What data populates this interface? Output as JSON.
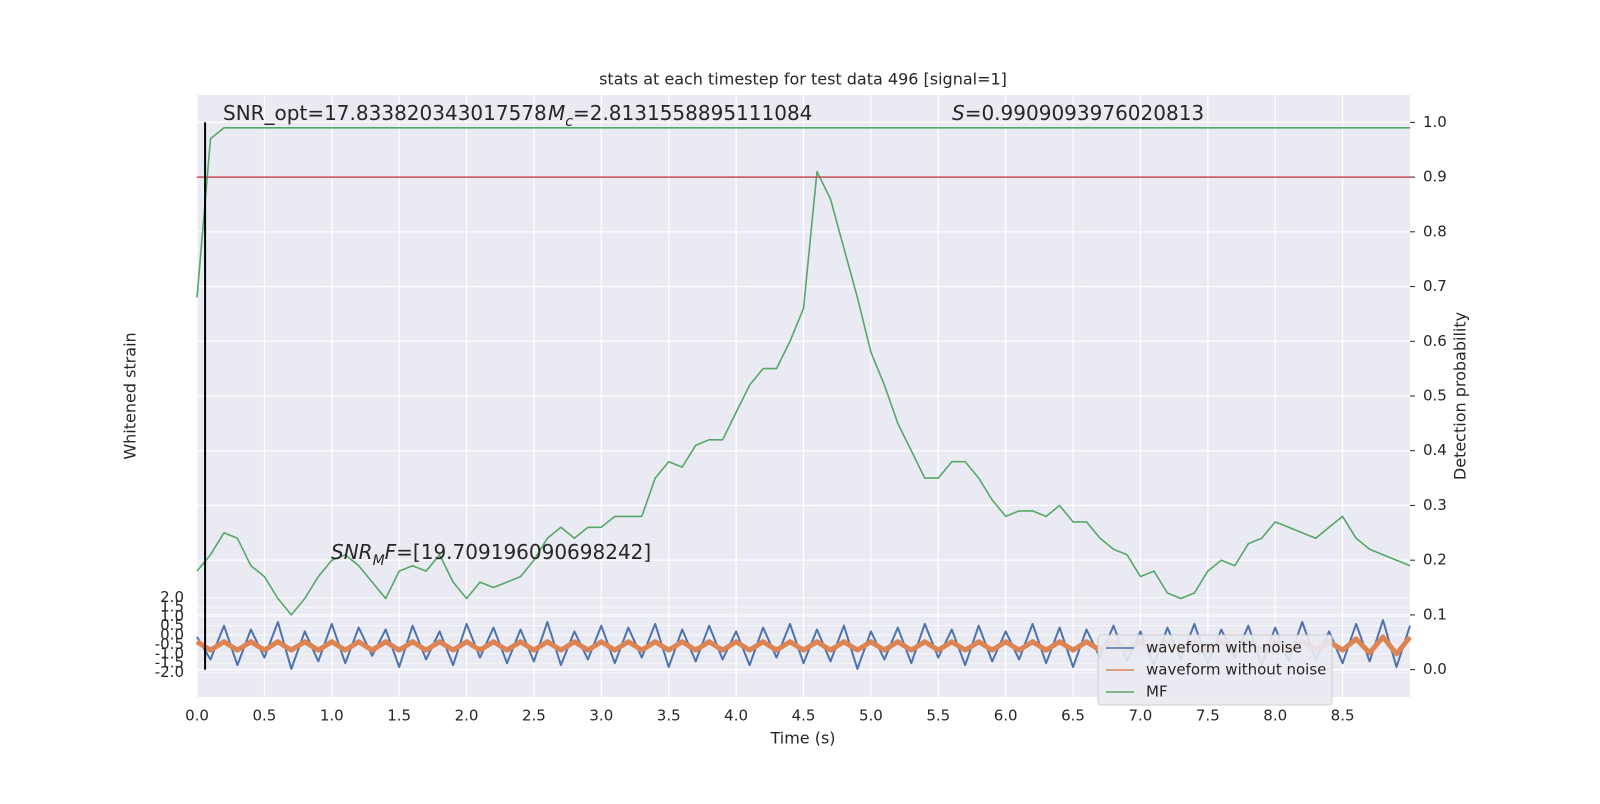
{
  "chart_data": {
    "type": "line",
    "title": "stats at each timestep for test data 496 [signal=1]",
    "xlabel": "Time (s)",
    "ylabel": "Whitened strain",
    "y2label": "Detection probability",
    "background": "#eaeaf2",
    "grid": true,
    "legend": "lower right",
    "xlim": [
      0,
      9
    ],
    "xticks": [
      {
        "value": 0,
        "label": "0.0"
      },
      0.5,
      {
        "value": 1,
        "label": "1.0"
      },
      1.5,
      {
        "value": 2,
        "label": "2.0"
      },
      2.5,
      {
        "value": 3,
        "label": "3.0"
      },
      3.5,
      {
        "value": 4,
        "label": "4.0"
      },
      4.5,
      {
        "value": 5,
        "label": "5.0"
      },
      5.5,
      {
        "value": 6,
        "label": "6.0"
      },
      6.5,
      {
        "value": 7,
        "label": "7.0"
      },
      7.5,
      {
        "value": 8,
        "label": "8.0"
      },
      8.5
    ],
    "ylim": [
      -3.3,
      28.8
    ],
    "yticks": [
      {
        "value": -2,
        "label": "-2.0"
      },
      -1.5,
      {
        "value": -1,
        "label": "-1.0"
      },
      -0.5,
      {
        "value": 0,
        "label": "0.0"
      },
      0.5,
      {
        "value": 1,
        "label": "1.0"
      },
      1.5,
      {
        "value": 2,
        "label": "2.0"
      }
    ],
    "y2lim": [
      -0.05,
      1.05
    ],
    "y2ticks": [
      {
        "value": 0,
        "label": "0.0"
      },
      0.1,
      0.2,
      0.3,
      0.4,
      0.5,
      0.6,
      0.7,
      0.8,
      0.9,
      {
        "value": 1,
        "label": "1.0"
      }
    ],
    "x": [
      0,
      0.1,
      0.2,
      0.3,
      0.4,
      0.5,
      0.6,
      0.7,
      0.8,
      0.9,
      1,
      1.1,
      1.2,
      1.3,
      1.4,
      1.5,
      1.6,
      1.7,
      1.8,
      1.9,
      2,
      2.1,
      2.2,
      2.3,
      2.4,
      2.5,
      2.6,
      2.7,
      2.8,
      2.9,
      3,
      3.1,
      3.2,
      3.3,
      3.4,
      3.5,
      3.6,
      3.7,
      3.8,
      3.9,
      4,
      4.1,
      4.2,
      4.3,
      4.4,
      4.5,
      4.6,
      4.7,
      4.8,
      4.9,
      5,
      5.1,
      5.2,
      5.3,
      5.4,
      5.5,
      5.6,
      5.7,
      5.8,
      5.9,
      6,
      6.1,
      6.2,
      6.3,
      6.4,
      6.5,
      6.6,
      6.7,
      6.8,
      6.9,
      7,
      7.1,
      7.2,
      7.3,
      7.4,
      7.5,
      7.6,
      7.7,
      7.8,
      7.9,
      8,
      8.1,
      8.2,
      8.3,
      8.4,
      8.5,
      8.6,
      8.7,
      8.8,
      8.9,
      9
    ],
    "series": [
      {
        "name": "waveform with noise",
        "color": "#4c72b0",
        "width": 2,
        "values": [
          -0.1,
          -1.3,
          0.5,
          -1.6,
          0.3,
          -1.2,
          0.7,
          -1.8,
          0.2,
          -1.4,
          0.6,
          -1.5,
          0.4,
          -1.1,
          0.3,
          -1.7,
          0.5,
          -1.3,
          0.2,
          -1.6,
          0.6,
          -1.2,
          0.4,
          -1.5,
          0.3,
          -1.4,
          0.7,
          -1.6,
          0.2,
          -1.3,
          0.5,
          -1.5,
          0.4,
          -1.2,
          0.6,
          -1.7,
          0.3,
          -1.4,
          0.5,
          -1.3,
          0.2,
          -1.6,
          0.4,
          -1.2,
          0.6,
          -1.5,
          0.3,
          -1.4,
          0.5,
          -1.8,
          0.2,
          -1.3,
          0.4,
          -1.5,
          0.6,
          -1.2,
          0.3,
          -1.6,
          0.5,
          -1.4,
          0.2,
          -1.3,
          0.6,
          -1.5,
          0.4,
          -1.7,
          0.3,
          -1.2,
          0.5,
          -1.4,
          0.2,
          -1.6,
          0.4,
          -1.3,
          0.6,
          -1.5,
          0.3,
          -1.2,
          0.5,
          -1.6,
          0.4,
          -1.4,
          0.7,
          -1.3,
          0.2,
          -1.5,
          0.6,
          -1.4,
          0.8,
          -1.7,
          0.5
        ]
      },
      {
        "name": "waveform without noise",
        "color": "#dd8452",
        "width": 5,
        "values": [
          -0.35,
          -0.8,
          -0.35,
          -0.8,
          -0.35,
          -0.8,
          -0.35,
          -0.8,
          -0.35,
          -0.8,
          -0.35,
          -0.8,
          -0.35,
          -0.8,
          -0.35,
          -0.8,
          -0.35,
          -0.8,
          -0.35,
          -0.8,
          -0.35,
          -0.8,
          -0.35,
          -0.8,
          -0.35,
          -0.8,
          -0.35,
          -0.8,
          -0.35,
          -0.8,
          -0.35,
          -0.8,
          -0.35,
          -0.8,
          -0.35,
          -0.8,
          -0.35,
          -0.8,
          -0.35,
          -0.8,
          -0.35,
          -0.8,
          -0.35,
          -0.8,
          -0.35,
          -0.8,
          -0.35,
          -0.8,
          -0.35,
          -0.8,
          -0.35,
          -0.8,
          -0.35,
          -0.8,
          -0.35,
          -0.8,
          -0.35,
          -0.8,
          -0.35,
          -0.8,
          -0.35,
          -0.8,
          -0.35,
          -0.8,
          -0.35,
          -0.8,
          -0.35,
          -0.8,
          -0.35,
          -0.8,
          -0.35,
          -0.8,
          -0.35,
          -0.8,
          -0.35,
          -0.8,
          -0.35,
          -0.8,
          -0.35,
          -0.8,
          -0.35,
          -0.8,
          -0.35,
          -0.8,
          -0.35,
          -0.8,
          -0.2,
          -0.95,
          -0.1,
          -1.0,
          -0.1
        ]
      },
      {
        "name": "MF",
        "color": "#55a868",
        "width": 1.6,
        "axis": "y2",
        "values": [
          0.18,
          0.21,
          0.25,
          0.24,
          0.19,
          0.17,
          0.13,
          0.1,
          0.13,
          0.17,
          0.2,
          0.21,
          0.19,
          0.16,
          0.13,
          0.18,
          0.19,
          0.18,
          0.21,
          0.16,
          0.13,
          0.16,
          0.15,
          0.16,
          0.17,
          0.2,
          0.24,
          0.26,
          0.24,
          0.26,
          0.26,
          0.28,
          0.28,
          0.28,
          0.35,
          0.38,
          0.37,
          0.41,
          0.42,
          0.42,
          0.47,
          0.52,
          0.55,
          0.55,
          0.6,
          0.66,
          0.91,
          0.86,
          0.77,
          0.68,
          0.58,
          0.52,
          0.45,
          0.4,
          0.35,
          0.35,
          0.38,
          0.38,
          0.35,
          0.31,
          0.28,
          0.29,
          0.29,
          0.28,
          0.3,
          0.27,
          0.27,
          0.24,
          0.22,
          0.21,
          0.17,
          0.18,
          0.14,
          0.13,
          0.14,
          0.18,
          0.2,
          0.19,
          0.23,
          0.24,
          0.27,
          0.26,
          0.25,
          0.24,
          0.26,
          0.28,
          0.24,
          0.22,
          0.21,
          0.2,
          0.19
        ]
      },
      {
        "color": "#55a868",
        "width": 1.6,
        "axis": "y2",
        "values": [
          0.68,
          0.97,
          0.99,
          0.99,
          0.99,
          0.99,
          0.99,
          0.99,
          0.99,
          0.99,
          0.99,
          0.99,
          0.99,
          0.99,
          0.99,
          0.99,
          0.99,
          0.99,
          0.99,
          0.99,
          0.99,
          0.99,
          0.99,
          0.99,
          0.99,
          0.99,
          0.99,
          0.99,
          0.99,
          0.99,
          0.99,
          0.99,
          0.99,
          0.99,
          0.99,
          0.99,
          0.99,
          0.99,
          0.99,
          0.99,
          0.99,
          0.99,
          0.99,
          0.99,
          0.99,
          0.99,
          0.99,
          0.99,
          0.99,
          0.99,
          0.99,
          0.99,
          0.99,
          0.99,
          0.99,
          0.99,
          0.99,
          0.99,
          0.99,
          0.99,
          0.99,
          0.99,
          0.99,
          0.99,
          0.99,
          0.99,
          0.99,
          0.99,
          0.99,
          0.99,
          0.99,
          0.99,
          0.99,
          0.99,
          0.99,
          0.99,
          0.99,
          0.99,
          0.99,
          0.99,
          0.99,
          0.99,
          0.99,
          0.99,
          0.99,
          0.99,
          0.99,
          0.99,
          0.99,
          0.99,
          0.99
        ]
      }
    ],
    "hlines": [
      {
        "value": 0.9,
        "color": "#c44e52",
        "axis": "y2"
      }
    ],
    "vlines": [
      {
        "value": 0.06,
        "color": "#000000",
        "span": [
          0,
          1
        ],
        "axis": "y2"
      }
    ],
    "annotations": [
      [
        {
          "text": "SNR_opt=17.833820343017578"
        }
      ],
      [
        {
          "text": "M",
          "italic": true
        },
        {
          "text": "c",
          "italic": true,
          "sub": true
        },
        {
          "text": "=2.8131558895111084"
        }
      ],
      [
        {
          "text": "S",
          "italic": true
        },
        {
          "text": "=0.9909093976020813"
        }
      ],
      [
        {
          "text": "SNR",
          "italic": true
        },
        {
          "text": "M",
          "italic": true,
          "sub": true
        },
        {
          "text": "F",
          "italic": true
        },
        {
          "text": "=[19.709196090698242]"
        }
      ]
    ]
  }
}
